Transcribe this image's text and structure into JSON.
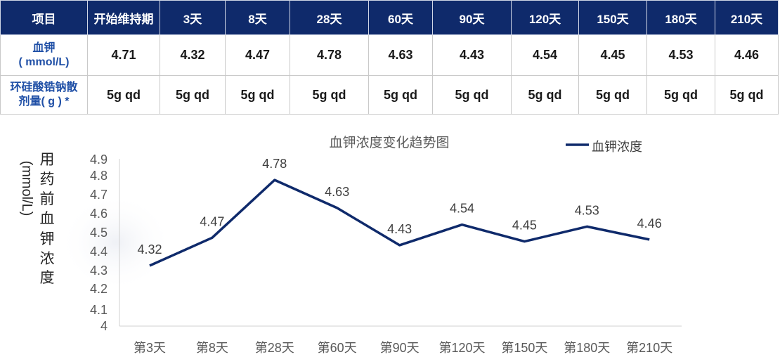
{
  "table": {
    "headers": [
      "项目",
      "开始维持期",
      "3天",
      "8天",
      "28天",
      "60天",
      "90天",
      "120天",
      "150天",
      "180天",
      "210天"
    ],
    "rows": [
      {
        "label_lines": [
          "血钾",
          "( mmol/L)"
        ],
        "cells": [
          "4.71",
          "4.32",
          "4.47",
          "4.78",
          "4.63",
          "4.43",
          "4.54",
          "4.45",
          "4.53",
          "4.46"
        ]
      },
      {
        "label_lines": [
          "环硅酸锆钠散",
          "剂量( g ) *"
        ],
        "cells": [
          "5g qd",
          "5g qd",
          "5g qd",
          "5g qd",
          "5g qd",
          "5g qd",
          "5g qd",
          "5g qd",
          "5g qd",
          "5g qd"
        ]
      }
    ]
  },
  "chart_data": {
    "type": "line",
    "title": "血钾浓度变化趋势图",
    "ylabel_vertical": "用药前血钾浓度",
    "ylabel_unit": "(mmol/L)",
    "categories": [
      "第3天",
      "第8天",
      "第28天",
      "第60天",
      "第90天",
      "第120天",
      "第150天",
      "第180天",
      "第210天"
    ],
    "series": [
      {
        "name": "血钾浓度",
        "values": [
          4.32,
          4.47,
          4.78,
          4.63,
          4.43,
          4.54,
          4.45,
          4.53,
          4.46
        ],
        "color": "#0f2a6b"
      }
    ],
    "data_labels": [
      "4.32",
      "4.47",
      "4.78",
      "4.63",
      "4.43",
      "4.54",
      "4.45",
      "4.53",
      "4.46"
    ],
    "yticks": [
      "4",
      "4.1",
      "4.2",
      "4.3",
      "4.4",
      "4.5",
      "4.6",
      "4.7",
      "4.8",
      "4.9"
    ],
    "ylim": [
      4,
      4.9
    ],
    "legend_position": "top-right",
    "grid": false
  }
}
